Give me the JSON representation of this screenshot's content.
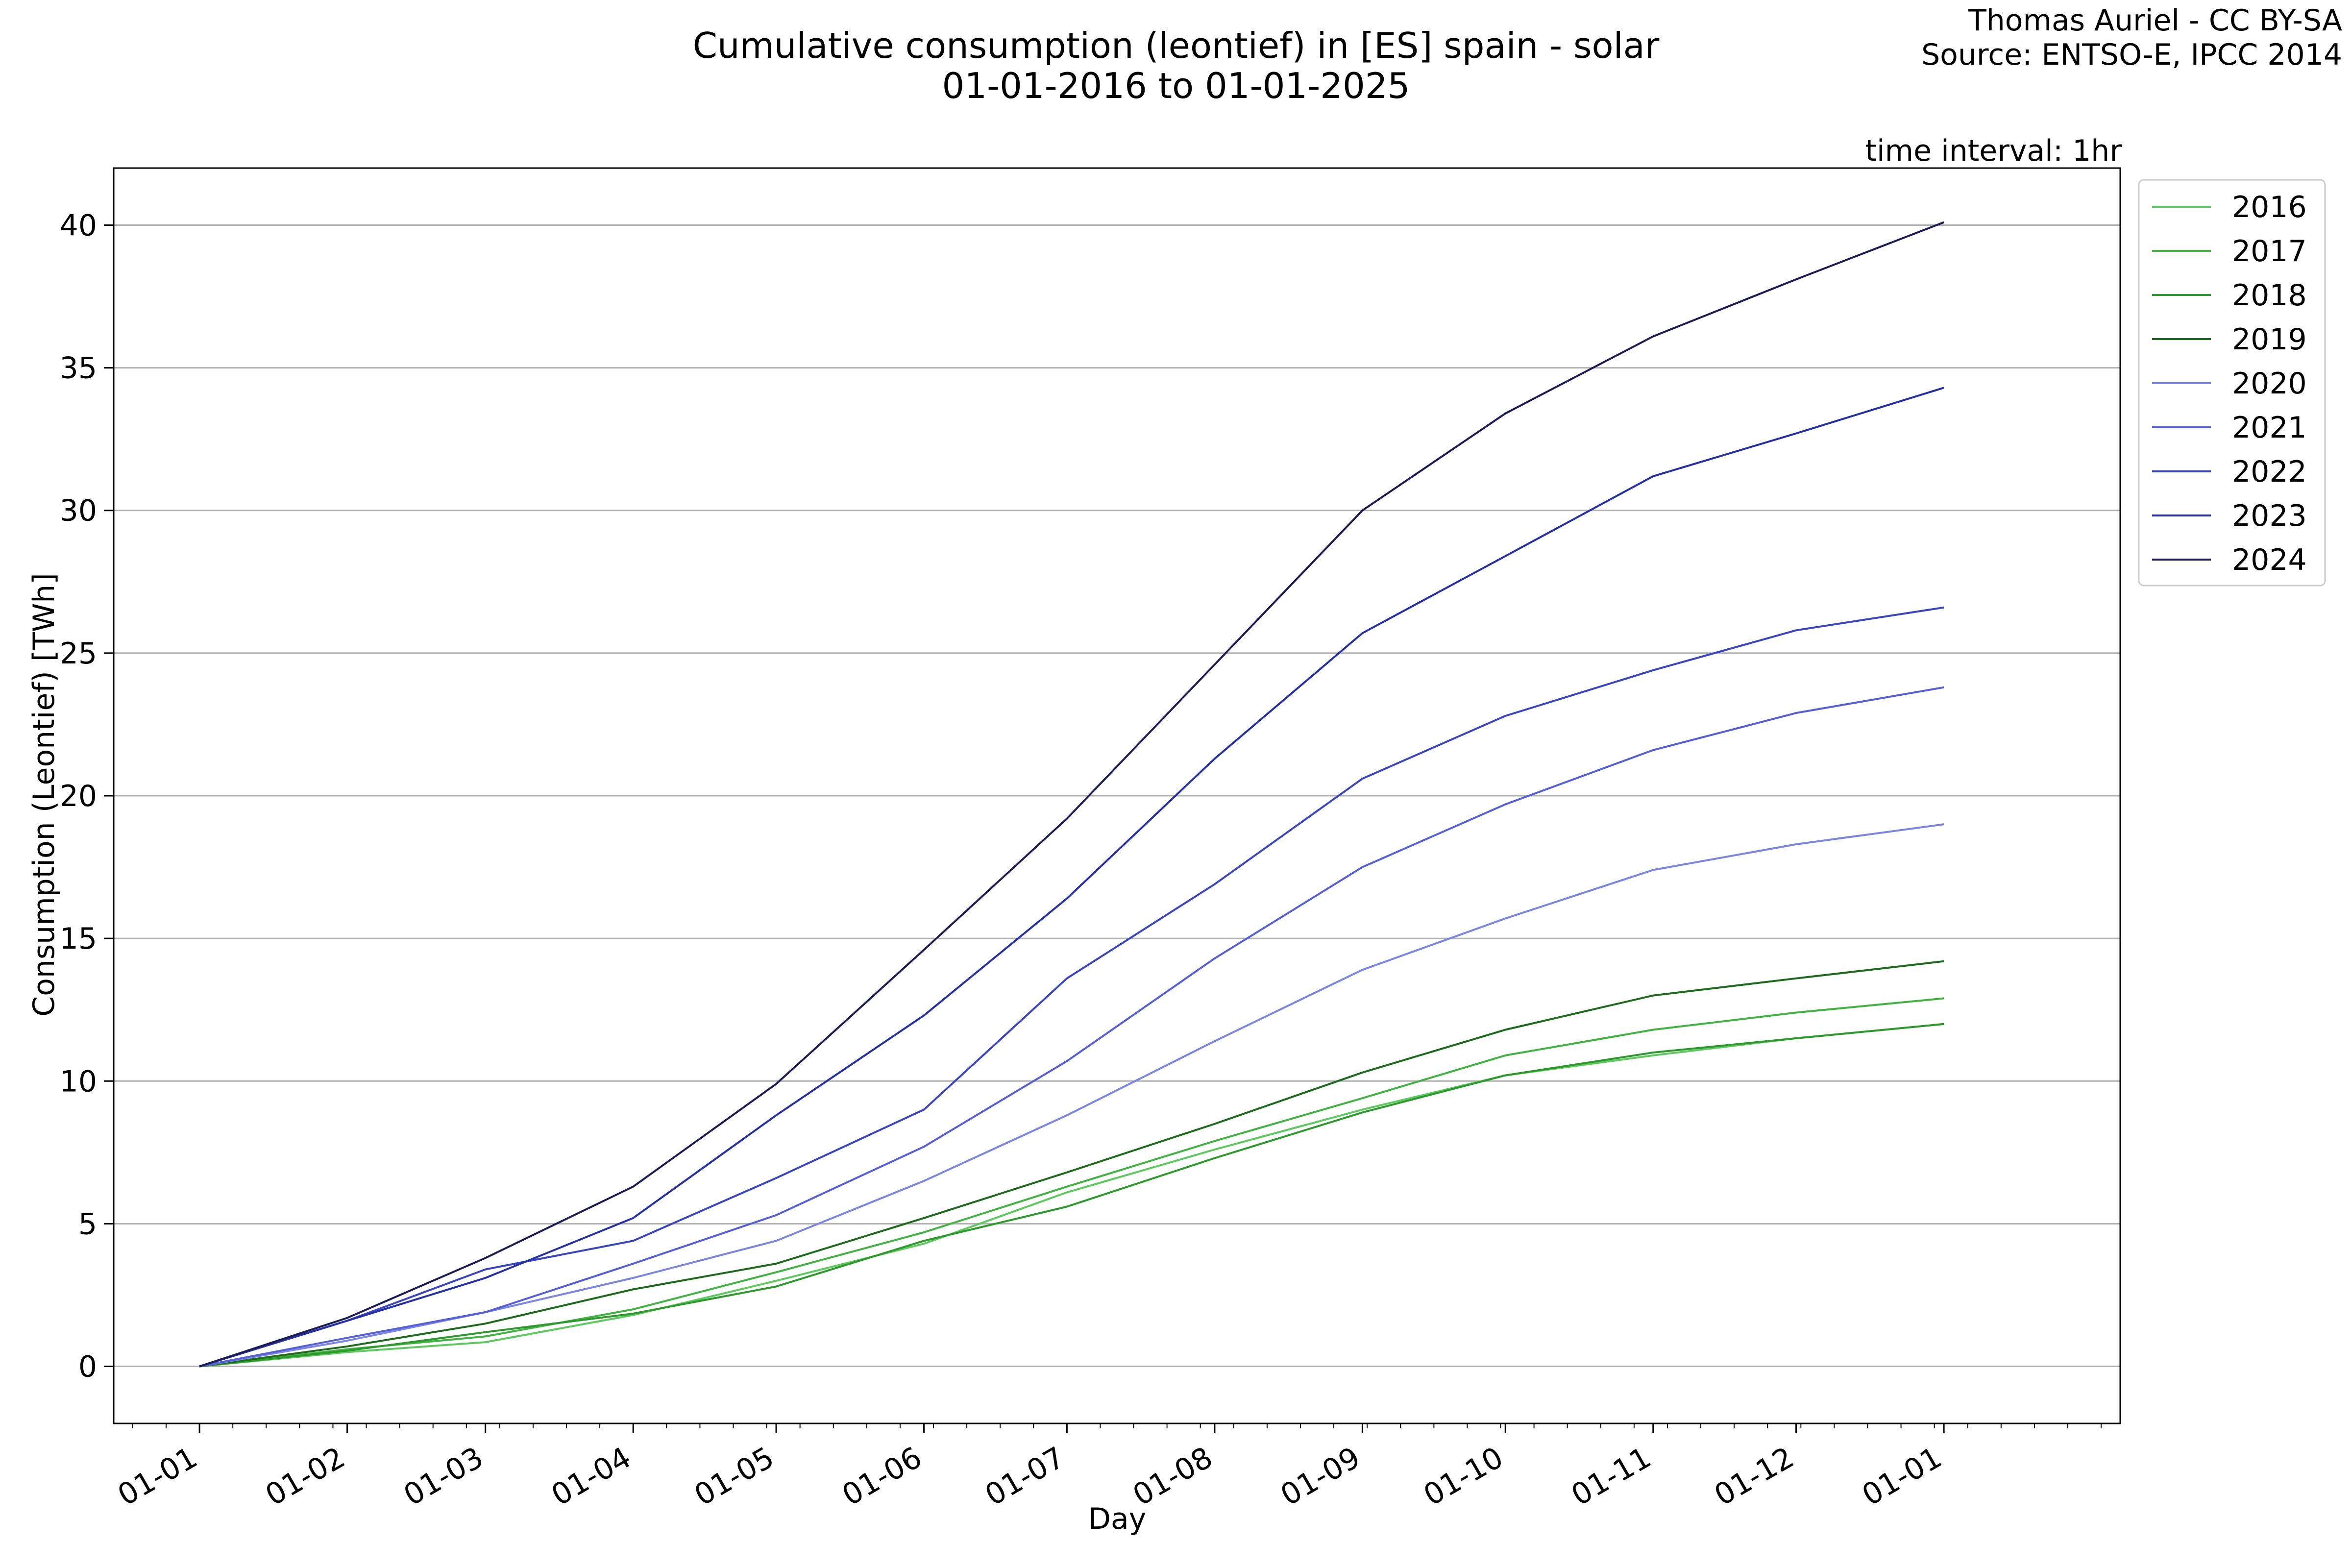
{
  "chart_data": {
    "type": "line",
    "title": "Cumulative consumption (leontief) in [ES] spain - solar",
    "subtitle": "01-01-2016 to 01-01-2025",
    "credit_lines": [
      "Thomas Auriel - CC BY-SA",
      "Source: ENTSO-E, IPCC 2014"
    ],
    "annotation": "time interval: 1hr",
    "xlabel": "Day",
    "ylabel": "Consumption (Leontief) [TWh]",
    "ylim": [
      -2,
      42
    ],
    "yticks": [
      0,
      5,
      10,
      15,
      20,
      25,
      30,
      35,
      40
    ],
    "xlim": [
      -18,
      403
    ],
    "xticks": [
      {
        "day": 0,
        "label": "01-01"
      },
      {
        "day": 31,
        "label": "01-02"
      },
      {
        "day": 60,
        "label": "01-03"
      },
      {
        "day": 91,
        "label": "01-04"
      },
      {
        "day": 121,
        "label": "01-05"
      },
      {
        "day": 152,
        "label": "01-06"
      },
      {
        "day": 182,
        "label": "01-07"
      },
      {
        "day": 213,
        "label": "01-08"
      },
      {
        "day": 244,
        "label": "01-09"
      },
      {
        "day": 274,
        "label": "01-10"
      },
      {
        "day": 305,
        "label": "01-11"
      },
      {
        "day": 335,
        "label": "01-12"
      },
      {
        "day": 366,
        "label": "01-01"
      }
    ],
    "grid": "horizontal",
    "legend_position": "outside-top-right",
    "x": [
      0,
      31,
      60,
      91,
      121,
      152,
      182,
      213,
      244,
      274,
      305,
      335,
      366
    ],
    "series": [
      {
        "name": "2016",
        "color": "#5ec95e",
        "values": [
          0,
          0.5,
          0.85,
          1.8,
          3.0,
          4.3,
          6.1,
          7.6,
          9.0,
          10.2,
          10.9,
          11.5,
          12.0
        ]
      },
      {
        "name": "2017",
        "color": "#42b342",
        "values": [
          0,
          0.6,
          1.05,
          2.0,
          3.3,
          4.7,
          6.3,
          7.9,
          9.4,
          10.9,
          11.8,
          12.4,
          12.9
        ]
      },
      {
        "name": "2018",
        "color": "#2e9a2e",
        "values": [
          0,
          0.55,
          1.2,
          1.85,
          2.8,
          4.4,
          5.6,
          7.3,
          8.9,
          10.2,
          11.0,
          11.5,
          12.0
        ]
      },
      {
        "name": "2019",
        "color": "#1e6b1e",
        "values": [
          0,
          0.7,
          1.5,
          2.7,
          3.6,
          5.2,
          6.8,
          8.5,
          10.3,
          11.8,
          13.0,
          13.6,
          14.2
        ]
      },
      {
        "name": "2020",
        "color": "#7b86e0",
        "values": [
          0,
          0.9,
          1.9,
          3.1,
          4.4,
          6.5,
          8.8,
          11.4,
          13.9,
          15.7,
          17.4,
          18.3,
          19.0
        ]
      },
      {
        "name": "2021",
        "color": "#5560d6",
        "values": [
          0,
          1.0,
          1.9,
          3.6,
          5.3,
          7.7,
          10.7,
          14.3,
          17.5,
          19.7,
          21.6,
          22.9,
          23.8
        ]
      },
      {
        "name": "2022",
        "color": "#3a45c0",
        "values": [
          0,
          1.6,
          3.4,
          4.4,
          6.6,
          9.0,
          13.6,
          16.9,
          20.6,
          22.8,
          24.4,
          25.8,
          26.6
        ]
      },
      {
        "name": "2023",
        "color": "#2430a4",
        "values": [
          0,
          1.6,
          3.1,
          5.2,
          8.8,
          12.3,
          16.4,
          21.3,
          25.7,
          28.4,
          31.2,
          32.7,
          34.3
        ]
      },
      {
        "name": "2024",
        "color": "#1c1c54",
        "values": [
          0,
          1.7,
          3.8,
          6.3,
          9.9,
          14.6,
          19.2,
          24.6,
          30.0,
          33.4,
          36.1,
          38.1,
          40.1
        ]
      }
    ]
  }
}
